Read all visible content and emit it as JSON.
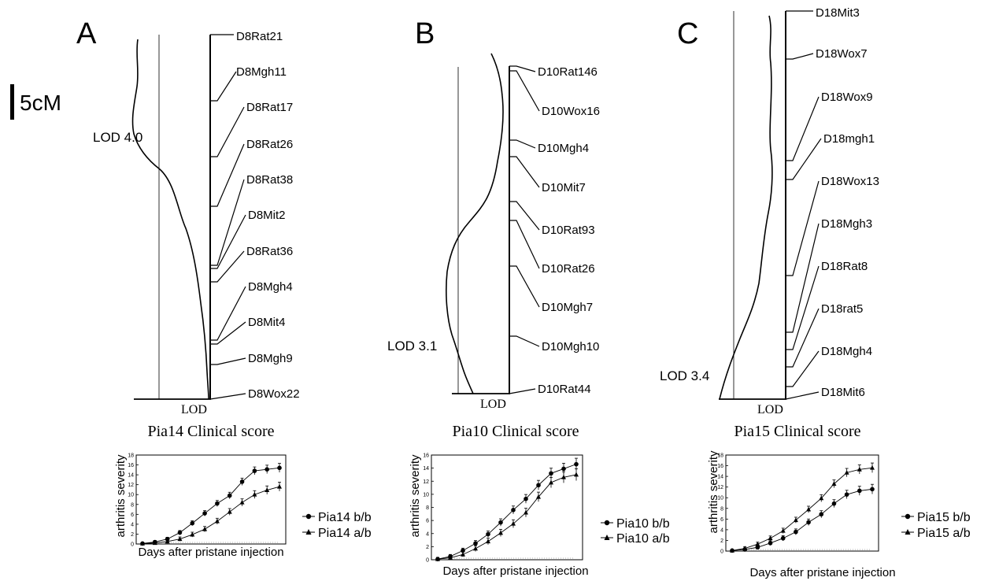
{
  "scale_bar": {
    "label": "5cM"
  },
  "panels": [
    {
      "letter": "A",
      "lod_peak_label": "LOD 4.0",
      "lod_axis_label": "LOD",
      "title": "Pia14 Clinical score",
      "markers": [
        "D8Rat21",
        "D8Mgh11",
        "D8Rat17",
        "D8Rat26",
        "D8Rat38",
        "D8Mit2",
        "D8Rat36",
        "D8Mgh4",
        "D8Mit4",
        "D8Mgh9",
        "D8Wox22"
      ],
      "chart": {
        "ylabel": "arthritis severity",
        "xlabel": "Days after pristane injection",
        "ylim": [
          0,
          18
        ],
        "yticks": [
          "0",
          "2",
          "4",
          "6",
          "8",
          "10",
          "12",
          "14",
          "16",
          "18"
        ],
        "series": [
          {
            "name": "Pia14 b/b",
            "marker": "circle",
            "values": [
              0.1,
              0.4,
              1.0,
              2.3,
              4.2,
              6.2,
              8.2,
              9.8,
              12.6,
              14.8,
              15.1,
              15.4
            ]
          },
          {
            "name": "Pia14 a/b",
            "marker": "triangle",
            "values": [
              0.1,
              0.2,
              0.5,
              1.0,
              1.9,
              3.0,
              4.6,
              6.5,
              8.4,
              10.0,
              10.9,
              11.6
            ]
          }
        ]
      }
    },
    {
      "letter": "B",
      "lod_peak_label": "LOD 3.1",
      "lod_axis_label": "LOD",
      "title": "Pia10 Clinical score",
      "markers": [
        "D10Rat146",
        "D10Wox16",
        "D10Mgh4",
        "D10Mit7",
        "D10Rat93",
        "D10Rat26",
        "D10Mgh7",
        "D10Mgh10",
        "D10Rat44"
      ],
      "chart": {
        "ylabel": "arthritis severity",
        "xlabel": "Days after pristane injection",
        "ylim": [
          0,
          16
        ],
        "yticks": [
          "0",
          "2",
          "4",
          "6",
          "8",
          "10",
          "12",
          "14",
          "16"
        ],
        "series": [
          {
            "name": "Pia10 b/b",
            "marker": "circle",
            "values": [
              0.1,
              0.5,
              1.4,
              2.5,
              3.9,
              5.7,
              7.6,
              9.3,
              11.4,
              13.2,
              13.9,
              14.6
            ]
          },
          {
            "name": "Pia10 a/b",
            "marker": "triangle",
            "values": [
              0.1,
              0.3,
              0.8,
              1.7,
              2.8,
              4.1,
              5.5,
              7.2,
              9.6,
              11.8,
              12.6,
              13.0
            ]
          }
        ]
      }
    },
    {
      "letter": "C",
      "lod_peak_label": "LOD 3.4",
      "lod_axis_label": "LOD",
      "title": "Pia15 Clinical score",
      "markers": [
        "D18Mit3",
        "D18Wox7",
        "D18Wox9",
        "D18mgh1",
        "D18Wox13",
        "D18Mgh3",
        "D18Rat8",
        "D18rat5",
        "D18Mgh4",
        "D18Mit6"
      ],
      "chart": {
        "ylabel": "arthritis severity",
        "xlabel": "Days after pristane injection",
        "ylim": [
          0,
          18
        ],
        "yticks": [
          "0",
          "2",
          "4",
          "6",
          "8",
          "10",
          "12",
          "14",
          "16",
          "18"
        ],
        "series": [
          {
            "name": "Pia15 b/b",
            "marker": "circle",
            "values": [
              0.1,
              0.3,
              0.7,
              1.5,
              2.4,
              3.6,
              5.4,
              6.9,
              8.9,
              10.6,
              11.3,
              11.6
            ]
          },
          {
            "name": "Pia15 a/b",
            "marker": "triangle",
            "values": [
              0.1,
              0.5,
              1.3,
              2.4,
              3.8,
              5.8,
              7.8,
              9.9,
              12.6,
              14.7,
              15.3,
              15.6
            ]
          }
        ]
      }
    }
  ]
}
